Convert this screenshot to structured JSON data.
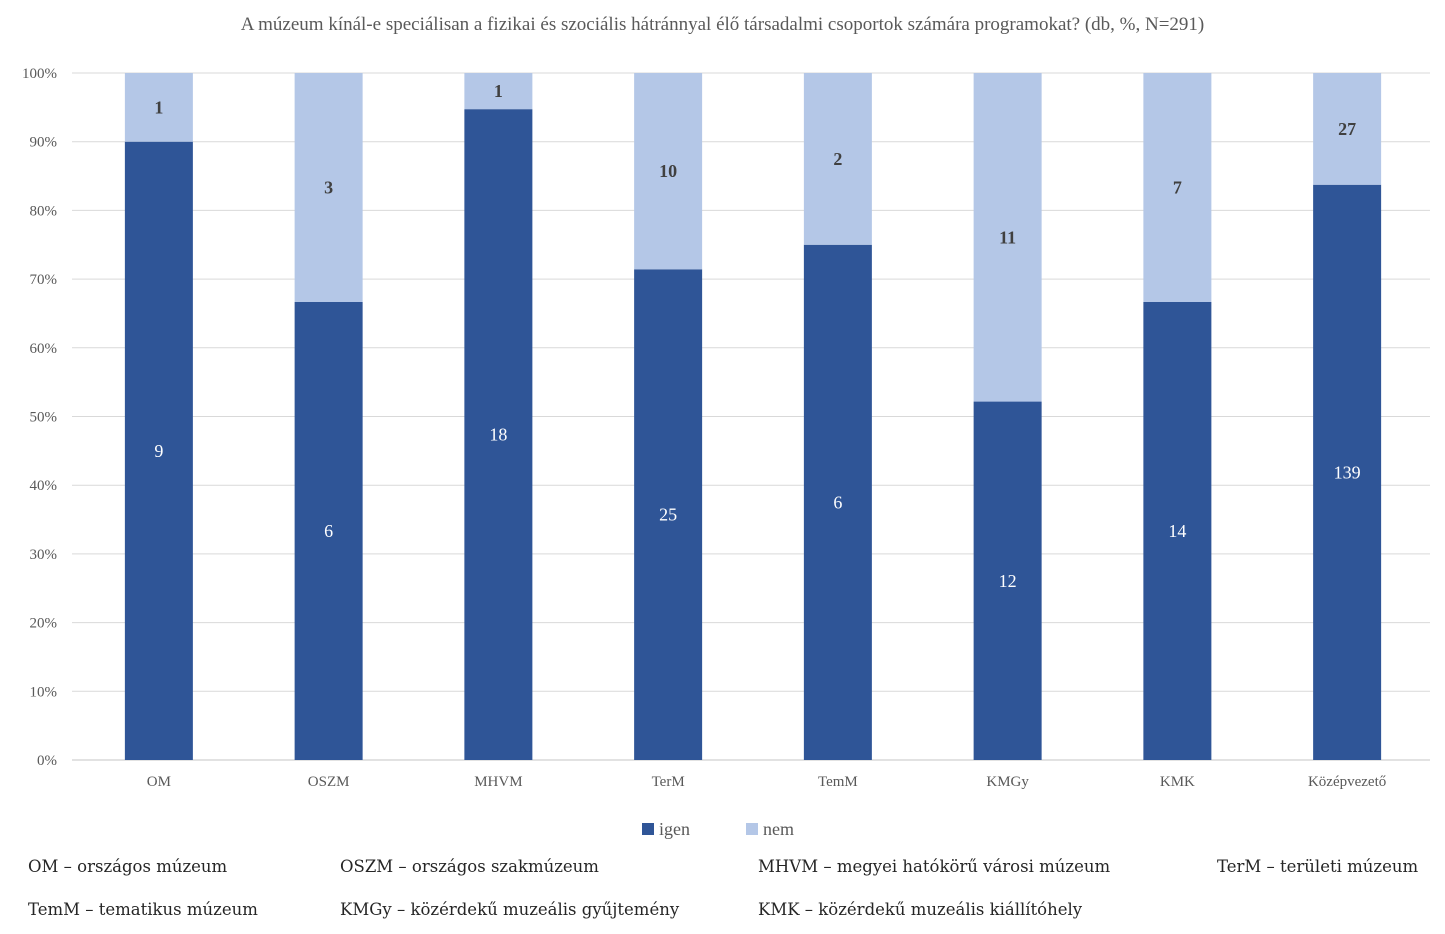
{
  "chart_data": {
    "type": "bar",
    "stacked": "percent",
    "title": "A múzeum kínál-e speciálisan a fizikai és szociális hátránnyal élő társadalmi csoportok számára programokat? (db, %, N=291)",
    "xlabel": "",
    "ylabel": "",
    "ylim": [
      0,
      100
    ],
    "yticks": [
      "0%",
      "10%",
      "20%",
      "30%",
      "40%",
      "50%",
      "60%",
      "70%",
      "80%",
      "90%",
      "100%"
    ],
    "grid": true,
    "legend_position": "bottom",
    "categories": [
      "OM",
      "OSZM",
      "MHVM",
      "TerM",
      "TemM",
      "KMGy",
      "KMK",
      "Középvezető"
    ],
    "series": [
      {
        "name": "igen",
        "color": "#2F5597",
        "values": [
          9,
          6,
          18,
          25,
          6,
          12,
          14,
          139
        ]
      },
      {
        "name": "nem",
        "color": "#B4C7E7",
        "values": [
          1,
          3,
          1,
          10,
          2,
          11,
          7,
          27
        ]
      }
    ]
  },
  "definitions": [
    [
      "OM – országos múzeum",
      "OSZM – országos szakmúzeum",
      "MHVM – megyei hatókörű városi múzeum",
      "TerM – területi múzeum"
    ],
    [
      "TemM – tematikus múzeum",
      "KMGy – közérdekű muzeális gyűjtemény",
      "KMK – közérdekű muzeális kiállítóhely"
    ]
  ]
}
